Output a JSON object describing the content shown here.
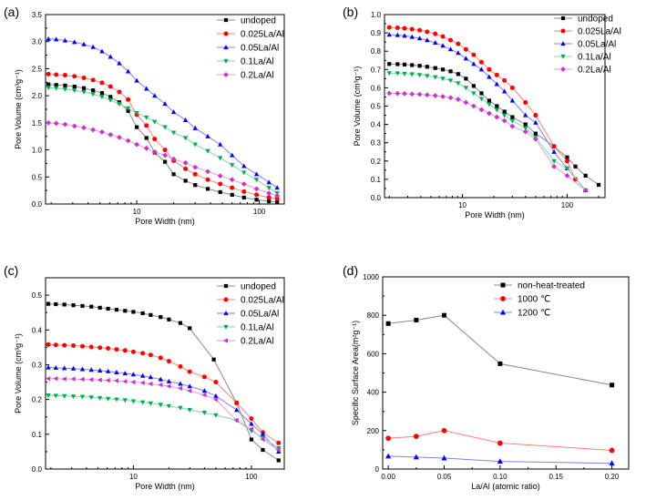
{
  "chart_data": [
    {
      "type": "line",
      "panel_label": "(a)",
      "xlabel": "Pore Width (nm)",
      "ylabel": "Pore Volume (cm³g⁻¹)",
      "xscale": "log",
      "xlim": [
        1.8,
        160
      ],
      "ylim": [
        0,
        3.5
      ],
      "xticks": [
        10,
        100
      ],
      "xtick_labels": [
        "10",
        "100"
      ],
      "yticks": [
        0,
        0.5,
        1.0,
        1.5,
        2.0,
        2.5,
        3.0,
        3.5
      ],
      "ytick_labels": [
        "0.0",
        "0.5",
        "1.0",
        "1.5",
        "2.0",
        "2.5",
        "3.0",
        "3.5"
      ],
      "legend_position": "top-right",
      "series": [
        {
          "name": "undoped",
          "color": "#000000",
          "line_color": "#888888",
          "marker": "square",
          "x": [
            1.9,
            2.2,
            2.6,
            3.1,
            3.7,
            4.4,
            5.2,
            6.1,
            7.2,
            8.5,
            10,
            12,
            14,
            17,
            20,
            25,
            30,
            38,
            48,
            60,
            75,
            95,
            120,
            140
          ],
          "y": [
            2.21,
            2.2,
            2.19,
            2.17,
            2.14,
            2.1,
            2.05,
            1.98,
            1.88,
            1.72,
            1.42,
            1.22,
            0.95,
            0.78,
            0.55,
            0.43,
            0.35,
            0.28,
            0.22,
            0.17,
            0.12,
            0.08,
            0.05,
            0.04
          ]
        },
        {
          "name": "0.025La/Al",
          "color": "#ff0000",
          "line_color": "#ff7f7f",
          "marker": "circle",
          "x": [
            1.9,
            2.2,
            2.6,
            3.1,
            3.7,
            4.4,
            5.2,
            6.1,
            7.2,
            8.5,
            10,
            12,
            14,
            17,
            20,
            25,
            30,
            38,
            48,
            60,
            75,
            95,
            120,
            140
          ],
          "y": [
            2.4,
            2.39,
            2.38,
            2.36,
            2.33,
            2.29,
            2.24,
            2.17,
            2.07,
            1.93,
            1.65,
            1.45,
            1.2,
            1.0,
            0.8,
            0.65,
            0.55,
            0.45,
            0.37,
            0.3,
            0.23,
            0.17,
            0.12,
            0.1
          ]
        },
        {
          "name": "0.05La/Al",
          "color": "#0000ff",
          "line_color": "#7f7fff",
          "marker": "triangle-up",
          "x": [
            1.9,
            2.2,
            2.6,
            3.1,
            3.7,
            4.4,
            5.2,
            6.1,
            7.2,
            8.5,
            10,
            12,
            14,
            17,
            20,
            25,
            30,
            38,
            48,
            60,
            75,
            95,
            120,
            140
          ],
          "y": [
            3.05,
            3.04,
            3.02,
            2.99,
            2.95,
            2.9,
            2.82,
            2.72,
            2.6,
            2.45,
            2.28,
            2.13,
            2.0,
            1.85,
            1.7,
            1.55,
            1.4,
            1.25,
            1.1,
            0.9,
            0.7,
            0.55,
            0.4,
            0.3
          ]
        },
        {
          "name": "0.1La/Al",
          "color": "#00b050",
          "line_color": "#7fd7a7",
          "marker": "triangle-down",
          "x": [
            1.9,
            2.2,
            2.6,
            3.1,
            3.7,
            4.4,
            5.2,
            6.1,
            7.2,
            8.5,
            10,
            12,
            14,
            17,
            20,
            25,
            30,
            38,
            48,
            60,
            75,
            95,
            120,
            140
          ],
          "y": [
            2.15,
            2.14,
            2.12,
            2.1,
            2.07,
            2.03,
            1.98,
            1.92,
            1.85,
            1.77,
            1.68,
            1.6,
            1.52,
            1.42,
            1.32,
            1.22,
            1.1,
            0.98,
            0.85,
            0.72,
            0.58,
            0.45,
            0.3,
            0.2
          ]
        },
        {
          "name": "0.2La/Al",
          "color": "#cc33cc",
          "line_color": "#e099e0",
          "marker": "diamond",
          "x": [
            1.9,
            2.2,
            2.6,
            3.1,
            3.7,
            4.4,
            5.2,
            6.1,
            7.2,
            8.5,
            10,
            12,
            14,
            17,
            20,
            25,
            30,
            38,
            48,
            60,
            75,
            95,
            120,
            140
          ],
          "y": [
            1.5,
            1.49,
            1.47,
            1.44,
            1.41,
            1.37,
            1.33,
            1.28,
            1.23,
            1.17,
            1.1,
            1.03,
            0.96,
            0.9,
            0.83,
            0.76,
            0.68,
            0.6,
            0.52,
            0.45,
            0.37,
            0.28,
            0.2,
            0.15
          ]
        }
      ]
    },
    {
      "type": "line",
      "panel_label": "(b)",
      "xlabel": "Pore Width (nm)",
      "ylabel": "Pore Volume (cm³g⁻¹)",
      "xscale": "log",
      "xlim": [
        1.8,
        230
      ],
      "ylim": [
        0,
        1.0
      ],
      "xticks": [
        10,
        100
      ],
      "xtick_labels": [
        "10",
        "100"
      ],
      "yticks": [
        0,
        0.1,
        0.2,
        0.3,
        0.4,
        0.5,
        0.6,
        0.7,
        0.8,
        0.9,
        1.0
      ],
      "ytick_labels": [
        "0.0",
        "0.1",
        "0.2",
        "0.3",
        "0.4",
        "0.5",
        "0.6",
        "0.7",
        "0.8",
        "0.9",
        "1.0"
      ],
      "legend_position": "top-right",
      "series": [
        {
          "name": "undoped",
          "color": "#000000",
          "line_color": "#888888",
          "marker": "square",
          "x": [
            2,
            2.4,
            2.8,
            3.3,
            3.9,
            4.6,
            5.5,
            6.5,
            7.7,
            9.1,
            10.8,
            12.8,
            15.2,
            18,
            21.3,
            25.2,
            30,
            40,
            50,
            75,
            100,
            120,
            150,
            200
          ],
          "y": [
            0.73,
            0.729,
            0.727,
            0.724,
            0.72,
            0.715,
            0.708,
            0.7,
            0.69,
            0.675,
            0.65,
            0.61,
            0.57,
            0.53,
            0.5,
            0.47,
            0.44,
            0.4,
            0.35,
            0.28,
            0.22,
            0.17,
            0.12,
            0.07
          ]
        },
        {
          "name": "0.025La/Al",
          "color": "#ff0000",
          "line_color": "#ff7f7f",
          "marker": "circle",
          "x": [
            2,
            2.4,
            2.8,
            3.3,
            3.9,
            4.6,
            5.5,
            6.5,
            7.7,
            9.1,
            10.8,
            12.8,
            15.2,
            18,
            21.3,
            25.2,
            30,
            40,
            50,
            75,
            100,
            120
          ],
          "y": [
            0.93,
            0.928,
            0.925,
            0.92,
            0.914,
            0.906,
            0.895,
            0.88,
            0.86,
            0.84,
            0.81,
            0.78,
            0.74,
            0.7,
            0.67,
            0.64,
            0.6,
            0.52,
            0.45,
            0.28,
            0.2,
            0.1
          ]
        },
        {
          "name": "0.05La/Al",
          "color": "#0000ff",
          "line_color": "#7f7fff",
          "marker": "triangle-up",
          "x": [
            2,
            2.4,
            2.8,
            3.3,
            3.9,
            4.6,
            5.5,
            6.5,
            7.7,
            9.1,
            10.8,
            12.8,
            15.2,
            18,
            21.3,
            25.2,
            30,
            40,
            50,
            75,
            100,
            150
          ],
          "y": [
            0.89,
            0.888,
            0.884,
            0.878,
            0.87,
            0.86,
            0.846,
            0.83,
            0.81,
            0.79,
            0.76,
            0.73,
            0.7,
            0.66,
            0.62,
            0.58,
            0.53,
            0.45,
            0.41,
            0.25,
            0.16,
            0.04
          ]
        },
        {
          "name": "0.1La/Al",
          "color": "#00b050",
          "line_color": "#7fd7a7",
          "marker": "triangle-down",
          "x": [
            2,
            2.4,
            2.8,
            3.3,
            3.9,
            4.6,
            5.5,
            6.5,
            7.7,
            9.1,
            10.8,
            12.8,
            15.2,
            18,
            21.3,
            25.2,
            30,
            40,
            50,
            75,
            100,
            150
          ],
          "y": [
            0.68,
            0.679,
            0.677,
            0.674,
            0.67,
            0.665,
            0.658,
            0.65,
            0.64,
            0.625,
            0.6,
            0.57,
            0.54,
            0.51,
            0.48,
            0.45,
            0.42,
            0.38,
            0.33,
            0.2,
            0.16,
            0.04
          ]
        },
        {
          "name": "0.2La/Al",
          "color": "#cc33cc",
          "line_color": "#e099e0",
          "marker": "diamond",
          "x": [
            2,
            2.4,
            2.8,
            3.3,
            3.9,
            4.6,
            5.5,
            6.5,
            7.7,
            9.1,
            10.8,
            12.8,
            15.2,
            18,
            21.3,
            25.2,
            30,
            40,
            50,
            75,
            100,
            150
          ],
          "y": [
            0.57,
            0.569,
            0.568,
            0.566,
            0.564,
            0.561,
            0.557,
            0.552,
            0.546,
            0.537,
            0.52,
            0.5,
            0.48,
            0.46,
            0.44,
            0.42,
            0.39,
            0.36,
            0.32,
            0.17,
            0.12,
            0.04
          ]
        }
      ]
    },
    {
      "type": "line",
      "panel_label": "(c)",
      "xlabel": "Pore Width (nm)",
      "ylabel": "Pore Volume (cm³g⁻¹)",
      "xscale": "log",
      "xlim": [
        1.8,
        190
      ],
      "ylim": [
        0,
        0.55
      ],
      "xticks": [
        10,
        100
      ],
      "xtick_labels": [
        "10",
        "100"
      ],
      "yticks": [
        0,
        0.1,
        0.2,
        0.3,
        0.4,
        0.5
      ],
      "ytick_labels": [
        "0.0",
        "0.1",
        "0.2",
        "0.3",
        "0.4",
        "0.5"
      ],
      "legend_position": "top-right",
      "series": [
        {
          "name": "undoped",
          "color": "#000000",
          "line_color": "#888888",
          "marker": "square",
          "x": [
            1.9,
            2.2,
            2.6,
            3.1,
            3.7,
            4.4,
            5.2,
            6.1,
            7.2,
            8.5,
            10,
            12,
            14,
            17,
            20,
            25,
            30,
            48,
            75,
            100,
            125,
            170
          ],
          "y": [
            0.475,
            0.474,
            0.473,
            0.471,
            0.469,
            0.467,
            0.464,
            0.461,
            0.458,
            0.455,
            0.452,
            0.448,
            0.443,
            0.437,
            0.43,
            0.42,
            0.405,
            0.315,
            0.19,
            0.085,
            0.055,
            0.025
          ]
        },
        {
          "name": "0.025La/Al",
          "color": "#ff0000",
          "line_color": "#ff7f7f",
          "marker": "circle",
          "x": [
            1.9,
            2.2,
            2.6,
            3.1,
            3.7,
            4.4,
            5.2,
            6.1,
            7.2,
            8.5,
            10,
            12,
            14,
            17,
            20,
            25,
            30,
            40,
            50,
            75,
            100,
            125,
            170
          ],
          "y": [
            0.358,
            0.357,
            0.356,
            0.355,
            0.353,
            0.351,
            0.349,
            0.347,
            0.344,
            0.341,
            0.337,
            0.333,
            0.328,
            0.32,
            0.31,
            0.295,
            0.28,
            0.265,
            0.25,
            0.19,
            0.145,
            0.105,
            0.075
          ]
        },
        {
          "name": "0.05La/Al",
          "color": "#0000ff",
          "line_color": "#7f7fff",
          "marker": "triangle-up",
          "x": [
            1.9,
            2.2,
            2.6,
            3.1,
            3.7,
            4.4,
            5.2,
            6.1,
            7.2,
            8.5,
            10,
            12,
            14,
            17,
            20,
            25,
            30,
            40,
            50,
            75,
            100,
            125,
            170
          ],
          "y": [
            0.292,
            0.291,
            0.29,
            0.289,
            0.287,
            0.285,
            0.283,
            0.281,
            0.278,
            0.275,
            0.272,
            0.268,
            0.264,
            0.258,
            0.252,
            0.245,
            0.238,
            0.225,
            0.21,
            0.17,
            0.13,
            0.1,
            0.05
          ]
        },
        {
          "name": "0.1La/Al",
          "color": "#00b050",
          "line_color": "#7fd7a7",
          "marker": "triangle-down",
          "x": [
            1.9,
            2.2,
            2.6,
            3.1,
            3.7,
            4.4,
            5.2,
            6.1,
            7.2,
            8.5,
            10,
            12,
            14,
            17,
            20,
            25,
            30,
            40,
            50,
            75,
            100,
            125,
            170
          ],
          "y": [
            0.212,
            0.211,
            0.21,
            0.209,
            0.208,
            0.206,
            0.204,
            0.202,
            0.2,
            0.198,
            0.195,
            0.192,
            0.189,
            0.185,
            0.181,
            0.176,
            0.17,
            0.162,
            0.155,
            0.14,
            0.11,
            0.09,
            0.06
          ]
        },
        {
          "name": "0.2La/Al",
          "color": "#cc33cc",
          "line_color": "#e099e0",
          "marker": "triangle-left",
          "x": [
            1.9,
            2.2,
            2.6,
            3.1,
            3.7,
            4.4,
            5.2,
            6.1,
            7.2,
            8.5,
            10,
            12,
            14,
            17,
            20,
            25,
            30,
            40,
            50,
            75,
            100,
            125,
            170
          ],
          "y": [
            0.26,
            0.26,
            0.259,
            0.259,
            0.258,
            0.257,
            0.256,
            0.255,
            0.254,
            0.252,
            0.25,
            0.248,
            0.245,
            0.242,
            0.238,
            0.232,
            0.225,
            0.213,
            0.2,
            0.14,
            0.115,
            0.085,
            0.055
          ]
        }
      ]
    },
    {
      "type": "line",
      "panel_label": "(d)",
      "xlabel": "La/Al (atomic ratio)",
      "ylabel": "Specific Surface Area(m²g⁻¹)",
      "xscale": "linear",
      "xlim": [
        -0.005,
        0.215
      ],
      "ylim": [
        0,
        1000
      ],
      "xticks": [
        0,
        0.05,
        0.1,
        0.15,
        0.2
      ],
      "xtick_labels": [
        "0.00",
        "0.05",
        "0.10",
        "0.15",
        "0.20"
      ],
      "yticks": [
        0,
        200,
        400,
        600,
        800,
        1000
      ],
      "ytick_labels": [
        "0",
        "200",
        "400",
        "600",
        "800",
        "1000"
      ],
      "legend_position": "top-right",
      "series": [
        {
          "name": "non-heat-treated",
          "color": "#000000",
          "line_color": "#888888",
          "marker": "square",
          "x": [
            0,
            0.025,
            0.05,
            0.1,
            0.2
          ],
          "y": [
            757,
            775,
            800,
            548,
            437
          ]
        },
        {
          "name": "1000 ℃",
          "color": "#ff0000",
          "line_color": "#ff7f7f",
          "marker": "circle",
          "x": [
            0,
            0.025,
            0.05,
            0.1,
            0.2
          ],
          "y": [
            160,
            170,
            200,
            135,
            97
          ]
        },
        {
          "name": "1200 ℃",
          "color": "#0000ff",
          "line_color": "#7f7fff",
          "marker": "triangle-up",
          "x": [
            0,
            0.025,
            0.05,
            0.1,
            0.2
          ],
          "y": [
            67,
            62,
            57,
            40,
            30
          ]
        }
      ]
    }
  ]
}
